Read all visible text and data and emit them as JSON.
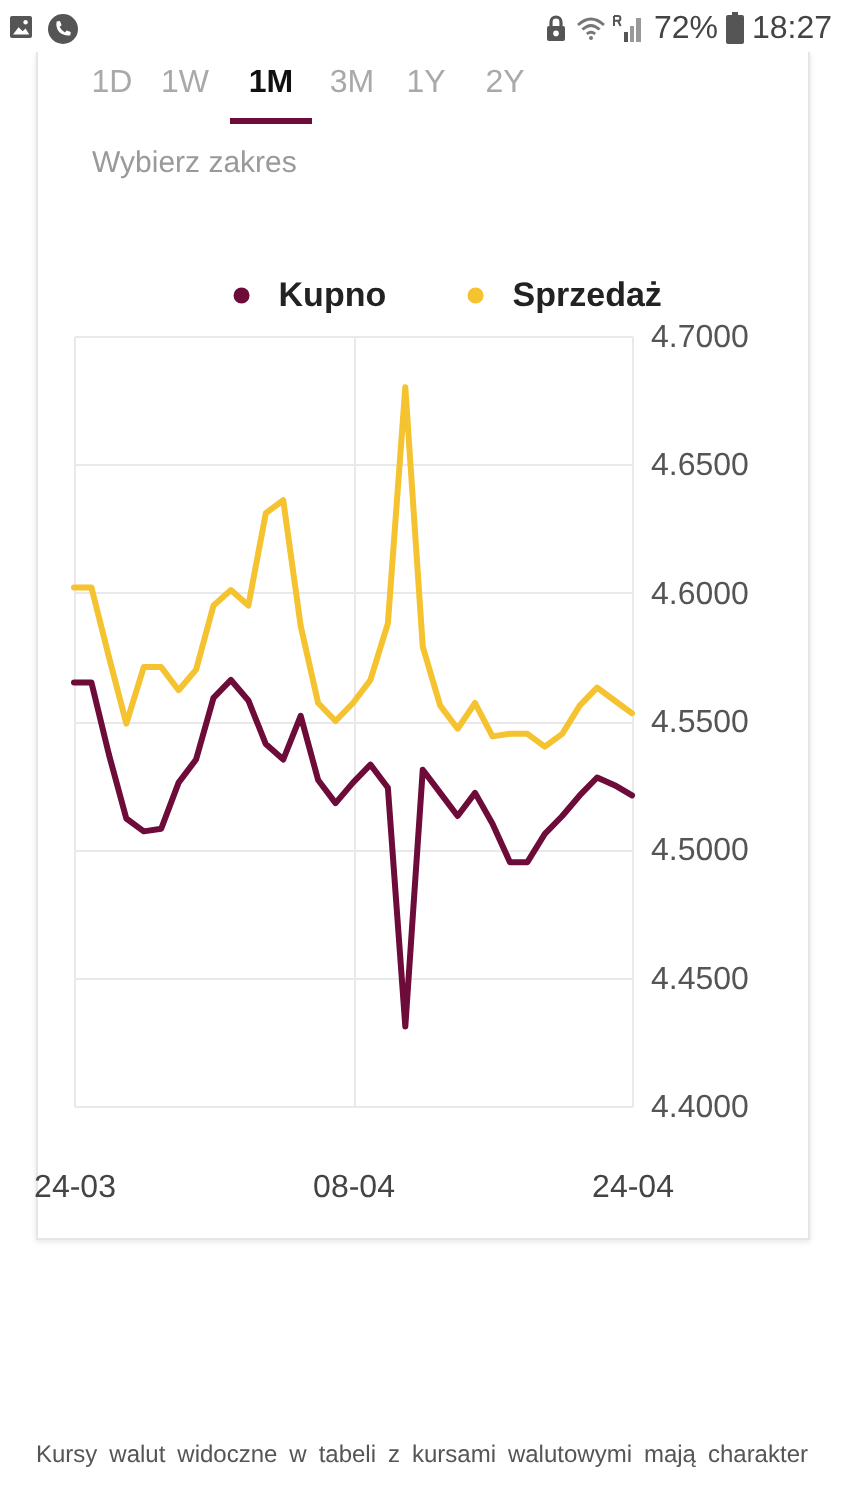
{
  "chart_data": {
    "type": "line",
    "categories": [
      "24-03",
      null,
      null,
      null,
      null,
      null,
      null,
      null,
      null,
      null,
      null,
      null,
      null,
      null,
      null,
      null,
      "08-04",
      null,
      null,
      null,
      null,
      null,
      null,
      null,
      null,
      null,
      null,
      null,
      null,
      null,
      null,
      null,
      "24-04"
    ],
    "series": [
      {
        "name": "Kupno",
        "color": "#6d0b39",
        "values": [
          4.565,
          4.565,
          4.537,
          4.512,
          4.507,
          4.508,
          4.526,
          4.535,
          4.559,
          4.566,
          4.558,
          4.541,
          4.535,
          4.552,
          4.527,
          4.518,
          4.526,
          4.533,
          4.524,
          4.431,
          4.531,
          4.522,
          4.513,
          4.522,
          4.51,
          4.495,
          4.495,
          4.506,
          4.513,
          4.521,
          4.528,
          4.525,
          4.521
        ]
      },
      {
        "name": "Sprzedaż",
        "color": "#f5c230",
        "values": [
          4.602,
          4.602,
          4.575,
          4.549,
          4.571,
          4.571,
          4.562,
          4.57,
          4.595,
          4.601,
          4.595,
          4.631,
          4.636,
          4.587,
          4.557,
          4.55,
          4.557,
          4.566,
          4.588,
          4.68,
          4.579,
          4.556,
          4.547,
          4.557,
          4.544,
          4.545,
          4.545,
          4.54,
          4.545,
          4.556,
          4.563,
          4.558,
          4.553
        ]
      }
    ],
    "ylim": [
      4.4,
      4.7
    ],
    "yticks": [
      {
        "value": 4.4,
        "label": "4.4000"
      },
      {
        "value": 4.45,
        "label": "4.4500"
      },
      {
        "value": 4.5,
        "label": "4.5000"
      },
      {
        "value": 4.55,
        "label": "4.5500"
      },
      {
        "value": 4.6,
        "label": "4.6000"
      },
      {
        "value": 4.65,
        "label": "4.6500"
      },
      {
        "value": 4.7,
        "label": "4.7000"
      }
    ],
    "grid": true,
    "legend": "top",
    "annotations": [
      "72%",
      "18:27",
      "1D",
      "1W",
      "1M",
      "3M",
      "1Y",
      "2Y",
      "Wybierz zakres",
      "Kursy walut widoczne w tabeli z kursami walutowymi mają charakter"
    ]
  }
}
